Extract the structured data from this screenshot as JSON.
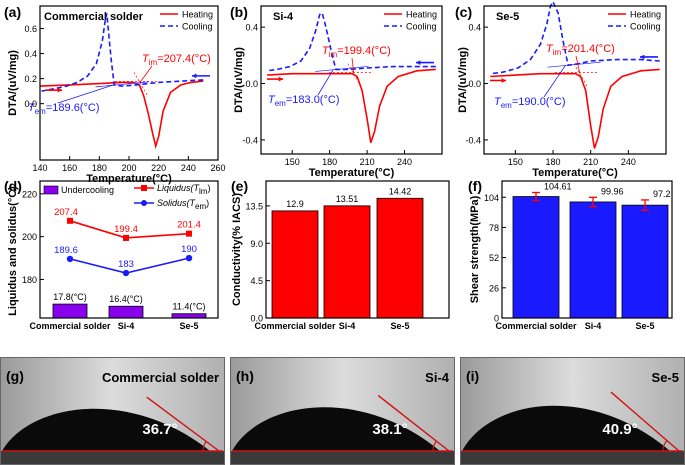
{
  "colors": {
    "heating": "#ff0000",
    "cooling": "#1a1aff",
    "bar_red": "#ff0000",
    "bar_blue": "#1a1aff",
    "purple": "#8800ee",
    "photo_bg": "#c2c2c2",
    "angle_line": "#d11010"
  },
  "chart_data": [
    {
      "id": "a",
      "type": "line",
      "panel_label": "(a)",
      "title": "Commercial solder",
      "xlabel": "Temperature(°C)",
      "ylabel": "DTA/(uV/mg)",
      "xlim": [
        140,
        260
      ],
      "ylim": [
        -0.45,
        0.78
      ],
      "xticks": [
        140,
        160,
        180,
        200,
        220,
        240,
        260
      ],
      "yticks": [
        0.0,
        0.2,
        0.4,
        0.6
      ],
      "xtick_labels": [
        "140",
        "160",
        "180",
        "200",
        "220",
        "240",
        "260"
      ],
      "ytick_labels": [
        "0.0",
        "0.2",
        "0.4",
        "0.6"
      ],
      "legend": [
        "Heating",
        "Cooling"
      ],
      "series": [
        {
          "name": "Heating",
          "style": "solid",
          "x": [
            140,
            160,
            180,
            195,
            203,
            207,
            210,
            213,
            216,
            218,
            220,
            223,
            228,
            235,
            242,
            250
          ],
          "y": [
            0.14,
            0.15,
            0.16,
            0.17,
            0.17,
            0.15,
            0.06,
            -0.08,
            -0.24,
            -0.34,
            -0.26,
            -0.06,
            0.09,
            0.15,
            0.17,
            0.18
          ]
        },
        {
          "name": "Cooling",
          "style": "dashed",
          "x": [
            250,
            235,
            220,
            205,
            195,
            190,
            188,
            186,
            185,
            184,
            182,
            178,
            172,
            165,
            158,
            150,
            141
          ],
          "y": [
            0.19,
            0.18,
            0.17,
            0.15,
            0.14,
            0.15,
            0.35,
            0.6,
            0.72,
            0.67,
            0.5,
            0.32,
            0.22,
            0.17,
            0.14,
            0.12,
            0.1
          ]
        }
      ],
      "annotations": [
        {
          "label": "T",
          "sub": "im",
          "value": "=207.4(°C)",
          "x": 207.4,
          "y": 0.17,
          "color": "red"
        },
        {
          "label": "T",
          "sub": "em",
          "value": "=189.6(°C)",
          "x": 189.6,
          "y": 0.15,
          "color": "blue"
        }
      ]
    },
    {
      "id": "b",
      "type": "line",
      "panel_label": "(b)",
      "title": "Si-4",
      "xlabel": "Temperature(°C)",
      "ylabel": "DTA/(uV/mg)",
      "xlim": [
        125,
        270
      ],
      "ylim": [
        -0.5,
        0.55
      ],
      "xticks": [
        150,
        180,
        210,
        240
      ],
      "yticks": [
        -0.4,
        0.0,
        0.4
      ],
      "xtick_labels": [
        "150",
        "180",
        "210",
        "240"
      ],
      "ytick_labels": [
        "-0.4",
        "0.0",
        "0.4"
      ],
      "legend": [
        "Heating",
        "Cooling"
      ],
      "series": [
        {
          "name": "Heating",
          "style": "solid",
          "x": [
            130,
            150,
            170,
            190,
            198,
            202,
            206,
            210,
            213,
            216,
            220,
            226,
            235,
            250,
            265
          ],
          "y": [
            0.06,
            0.07,
            0.07,
            0.07,
            0.07,
            0.05,
            -0.05,
            -0.25,
            -0.42,
            -0.34,
            -0.16,
            -0.02,
            0.05,
            0.09,
            0.1
          ]
        },
        {
          "name": "Cooling",
          "style": "dashed",
          "x": [
            265,
            250,
            230,
            210,
            195,
            185,
            182,
            177,
            174,
            172,
            169,
            164,
            157,
            148,
            138,
            130
          ],
          "y": [
            0.12,
            0.12,
            0.12,
            0.11,
            0.1,
            0.1,
            0.2,
            0.4,
            0.5,
            0.49,
            0.38,
            0.25,
            0.16,
            0.12,
            0.1,
            0.09
          ]
        }
      ],
      "annotations": [
        {
          "label": "T",
          "sub": "im",
          "value": "=199.4(°C)",
          "x": 199.4,
          "y": 0.07,
          "color": "red"
        },
        {
          "label": "T",
          "sub": "em",
          "value": "=183.0(°C)",
          "x": 183.0,
          "y": 0.1,
          "color": "blue"
        }
      ]
    },
    {
      "id": "c",
      "type": "line",
      "panel_label": "(c)",
      "title": "Se-5",
      "xlabel": "Temperature(°C)",
      "ylabel": "DTA/(uV/mg)",
      "xlim": [
        125,
        270
      ],
      "ylim": [
        -0.5,
        0.55
      ],
      "xticks": [
        150,
        180,
        210,
        240
      ],
      "yticks": [
        -0.4,
        0.0,
        0.4
      ],
      "xtick_labels": [
        "150",
        "180",
        "210",
        "240"
      ],
      "ytick_labels": [
        "-0.4",
        "0.0",
        "0.4"
      ],
      "legend": [
        "Heating",
        "Cooling"
      ],
      "series": [
        {
          "name": "Heating",
          "style": "solid",
          "x": [
            130,
            150,
            170,
            190,
            198,
            202,
            206,
            210,
            213,
            216,
            220,
            226,
            235,
            250,
            265
          ],
          "y": [
            0.05,
            0.06,
            0.07,
            0.07,
            0.07,
            0.05,
            -0.05,
            -0.3,
            -0.46,
            -0.38,
            -0.18,
            -0.02,
            0.05,
            0.09,
            0.1
          ]
        },
        {
          "name": "Cooling",
          "style": "dashed",
          "x": [
            265,
            250,
            230,
            210,
            200,
            192,
            188,
            184,
            180,
            178,
            175,
            170,
            162,
            152,
            140,
            130
          ],
          "y": [
            0.16,
            0.17,
            0.17,
            0.16,
            0.14,
            0.13,
            0.3,
            0.5,
            0.58,
            0.55,
            0.42,
            0.28,
            0.17,
            0.11,
            0.08,
            0.07
          ]
        }
      ],
      "annotations": [
        {
          "label": "T",
          "sub": "im",
          "value": "=201.4(°C)",
          "x": 201.4,
          "y": 0.07,
          "color": "red"
        },
        {
          "label": "T",
          "sub": "em",
          "value": "=190.0(°C)",
          "x": 190.0,
          "y": 0.13,
          "color": "blue"
        }
      ]
    },
    {
      "id": "d",
      "type": "bar+line",
      "panel_label": "(d)",
      "ylabel": "Liquidus and solidus(°C)",
      "categories": [
        "Commercial solder",
        "Si-4",
        "Se-5"
      ],
      "ylim": [
        162,
        226
      ],
      "yticks": [
        180,
        200,
        220
      ],
      "ytick_labels": [
        "180",
        "200",
        "220"
      ],
      "bars": {
        "name": "Undercooling",
        "labels": [
          "17.8(°C)",
          "16.4(°C)",
          "11.4(°C)"
        ],
        "values": [
          17.8,
          16.4,
          11.4
        ],
        "display_top": [
          168.5,
          167.5,
          164
        ]
      },
      "series": [
        {
          "name": "Liquidus(T",
          "sub": "lm",
          "close": ")",
          "values": [
            207.4,
            199.4,
            201.4
          ],
          "labels": [
            "207.4",
            "199.4",
            "201.4"
          ]
        },
        {
          "name": "Solidus(T",
          "sub": "em",
          "close": ")",
          "values": [
            189.6,
            183,
            190
          ],
          "labels": [
            "189.6",
            "183",
            "190"
          ]
        }
      ]
    },
    {
      "id": "e",
      "type": "bar",
      "panel_label": "(e)",
      "ylabel": "Conductivity(% IACS)",
      "categories": [
        "Commercial solder",
        "Si-4",
        "Se-5"
      ],
      "values": [
        12.9,
        13.51,
        14.42
      ],
      "labels": [
        "12.9",
        "13.51",
        "14.42"
      ],
      "ylim": [
        0,
        16.5
      ],
      "yticks": [
        0.0,
        4.5,
        9.0,
        13.5
      ],
      "ytick_labels": [
        "0.0",
        "4.5",
        "9.0",
        "13.5"
      ]
    },
    {
      "id": "f",
      "type": "bar",
      "panel_label": "(f)",
      "ylabel": "Shear strength(MPa)",
      "categories": [
        "Commercial solder",
        "Si-4",
        "Se-5"
      ],
      "values": [
        104.61,
        99.96,
        97.2
      ],
      "labels": [
        "104.61",
        "99.96",
        "97.2"
      ],
      "errors": [
        3.5,
        4.0,
        4.5
      ],
      "ylim": [
        0,
        118
      ],
      "yticks": [
        0,
        26,
        52,
        78,
        104
      ],
      "ytick_labels": [
        "0",
        "26",
        "52",
        "78",
        "104"
      ]
    }
  ],
  "photos": [
    {
      "panel_label": "(g)",
      "title": "Commercial solder",
      "angle_label": "36.7°",
      "angle_deg": 36.7
    },
    {
      "panel_label": "(h)",
      "title": "Si-4",
      "angle_label": "38.1°",
      "angle_deg": 38.1
    },
    {
      "panel_label": "(i)",
      "title": "Se-5",
      "angle_label": "40.9°",
      "angle_deg": 40.9
    }
  ]
}
